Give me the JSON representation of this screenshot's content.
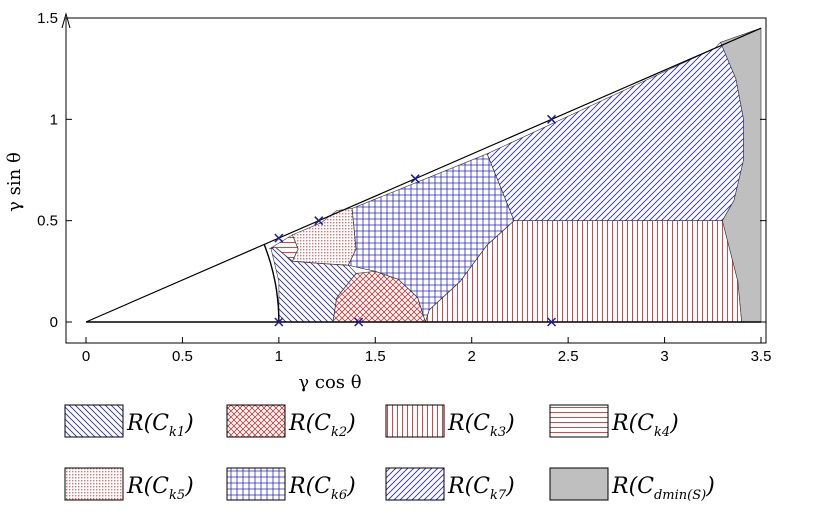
{
  "chart_data": {
    "type": "area",
    "title": "",
    "xlabel": "γ cos θ",
    "ylabel": "γ sin θ",
    "xlim": [
      0,
      3.5
    ],
    "ylim": [
      0,
      1.5
    ],
    "xticks": [
      "0",
      "0.5",
      "1",
      "1.5",
      "2",
      "2.5",
      "3",
      "3.5"
    ],
    "yticks": [
      "0",
      "0.5",
      "1",
      "1.5"
    ],
    "x_tick_values": [
      0,
      0.5,
      1,
      1.5,
      2,
      2.5,
      3,
      3.5
    ],
    "y_tick_values": [
      0,
      0.5,
      1,
      1.5
    ],
    "wedge_slope": 0.4142,
    "constellation_points": [
      {
        "x": 1.0,
        "y": 0.0
      },
      {
        "x": 1.414,
        "y": 0.0
      },
      {
        "x": 2.414,
        "y": 0.0
      },
      {
        "x": 1.0,
        "y": 0.414
      },
      {
        "x": 1.207,
        "y": 0.5
      },
      {
        "x": 1.707,
        "y": 0.707
      },
      {
        "x": 2.414,
        "y": 1.0
      }
    ],
    "regions": [
      {
        "name": "k1",
        "label_main": "R(C",
        "label_sub": "k1",
        "pattern": "diag-down",
        "color": "#2828c8",
        "polygon": [
          [
            1.0,
            0.0
          ],
          [
            1.28,
            0.0
          ],
          [
            1.3,
            0.12
          ],
          [
            1.4,
            0.24
          ],
          [
            1.36,
            0.28
          ],
          [
            1.2,
            0.29
          ],
          [
            1.07,
            0.3
          ],
          [
            0.98,
            0.37
          ],
          [
            0.96,
            0.36
          ],
          [
            1.0,
            0.2
          ]
        ]
      },
      {
        "name": "k2",
        "label_main": "R(C",
        "label_sub": "k2",
        "pattern": "crosshatch",
        "color": "#d23232",
        "polygon": [
          [
            1.28,
            0.0
          ],
          [
            1.76,
            0.0
          ],
          [
            1.72,
            0.12
          ],
          [
            1.62,
            0.21
          ],
          [
            1.5,
            0.25
          ],
          [
            1.4,
            0.24
          ],
          [
            1.3,
            0.12
          ]
        ]
      },
      {
        "name": "k3",
        "label_main": "R(C",
        "label_sub": "k3",
        "pattern": "vertical",
        "color": "#d23232",
        "polygon": [
          [
            1.76,
            0.0
          ],
          [
            3.4,
            0.0
          ],
          [
            3.38,
            0.2
          ],
          [
            3.3,
            0.5
          ],
          [
            2.22,
            0.5
          ],
          [
            2.08,
            0.38
          ],
          [
            1.94,
            0.2
          ],
          [
            1.78,
            0.06
          ]
        ]
      },
      {
        "name": "k4",
        "label_main": "R(C",
        "label_sub": "k4",
        "pattern": "horizontal",
        "color": "#d23232",
        "polygon": [
          [
            0.95,
            0.36
          ],
          [
            0.98,
            0.37
          ],
          [
            1.07,
            0.3
          ],
          [
            1.1,
            0.36
          ],
          [
            1.07,
            0.43
          ]
        ]
      },
      {
        "name": "k5",
        "label_main": "R(C",
        "label_sub": "k5",
        "pattern": "dots",
        "color": "#d23232",
        "polygon": [
          [
            1.07,
            0.43
          ],
          [
            1.1,
            0.36
          ],
          [
            1.07,
            0.3
          ],
          [
            1.2,
            0.29
          ],
          [
            1.36,
            0.28
          ],
          [
            1.4,
            0.36
          ],
          [
            1.38,
            0.56
          ],
          [
            1.3,
            0.55
          ],
          [
            1.22,
            0.49
          ]
        ]
      },
      {
        "name": "k6",
        "label_main": "R(C",
        "label_sub": "k6",
        "pattern": "grid",
        "color": "#2828c8",
        "polygon": [
          [
            1.38,
            0.56
          ],
          [
            1.4,
            0.36
          ],
          [
            1.36,
            0.28
          ],
          [
            1.5,
            0.25
          ],
          [
            1.62,
            0.21
          ],
          [
            1.72,
            0.12
          ],
          [
            1.76,
            0.0
          ],
          [
            1.78,
            0.06
          ],
          [
            1.94,
            0.2
          ],
          [
            2.08,
            0.38
          ],
          [
            2.22,
            0.5
          ],
          [
            2.08,
            0.83
          ]
        ]
      },
      {
        "name": "k7",
        "label_main": "R(C",
        "label_sub": "k7",
        "pattern": "diag-up",
        "color": "#2828c8",
        "polygon": [
          [
            2.08,
            0.83
          ],
          [
            2.22,
            0.5
          ],
          [
            3.3,
            0.5
          ],
          [
            3.36,
            0.6
          ],
          [
            3.41,
            0.8
          ],
          [
            3.41,
            1.0
          ],
          [
            3.37,
            1.2
          ],
          [
            3.29,
            1.38
          ],
          [
            3.26,
            1.35
          ]
        ]
      },
      {
        "name": "dmin",
        "label_main": "R(C",
        "label_sub": "dmin(S)",
        "pattern": "solid",
        "color": "#bfbfbf",
        "polygon": [
          [
            3.3,
            0.5
          ],
          [
            3.38,
            0.2
          ],
          [
            3.4,
            0.0
          ],
          [
            3.5,
            0.0
          ],
          [
            3.5,
            1.45
          ],
          [
            3.29,
            1.38
          ],
          [
            3.37,
            1.2
          ],
          [
            3.41,
            1.0
          ],
          [
            3.41,
            0.8
          ],
          [
            3.36,
            0.6
          ]
        ]
      }
    ],
    "legend": [
      {
        "region": "k1",
        "sub": "k1",
        "subnum": "1"
      },
      {
        "region": "k2",
        "sub": "k2",
        "subnum": "2"
      },
      {
        "region": "k3",
        "sub": "k3",
        "subnum": "3"
      },
      {
        "region": "k4",
        "sub": "k4",
        "subnum": "4"
      },
      {
        "region": "k5",
        "sub": "k5",
        "subnum": "5"
      },
      {
        "region": "k6",
        "sub": "k6",
        "subnum": "6"
      },
      {
        "region": "k7",
        "sub": "k7",
        "subnum": "7"
      },
      {
        "region": "dmin",
        "sub": "dmin",
        "subnum": ""
      }
    ],
    "legend_placement": "bottom",
    "grid": false
  }
}
